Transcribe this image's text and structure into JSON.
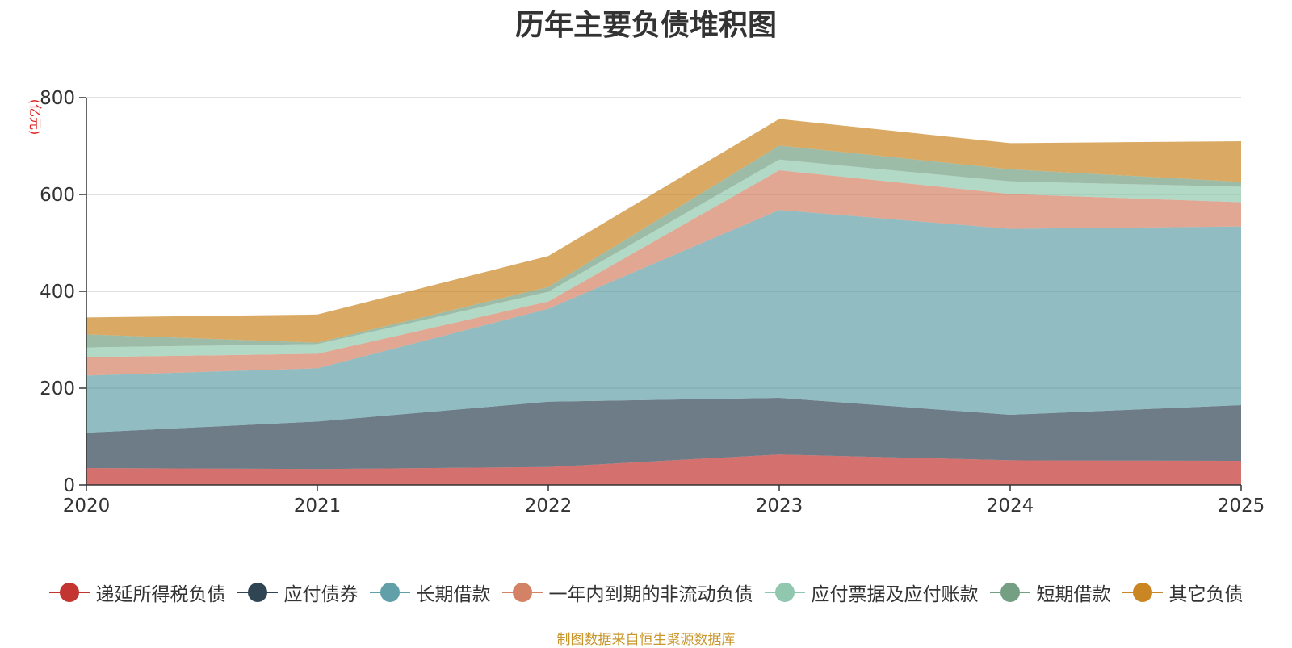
{
  "chart_data": {
    "type": "area",
    "stacked": true,
    "title": "历年主要负债堆积图",
    "ylabel": "(亿元)",
    "xlabel": "",
    "categories": [
      "2020",
      "2021",
      "2022",
      "2023",
      "2024",
      "2025"
    ],
    "ylim": [
      0,
      800
    ],
    "yticks": [
      0,
      200,
      400,
      600,
      800
    ],
    "grid": true,
    "legend_position": "bottom",
    "series": [
      {
        "name": "递延所得税负债",
        "color": "#c23531",
        "values": [
          35,
          33,
          37,
          63,
          51,
          50
        ]
      },
      {
        "name": "应付债券",
        "color": "#2f4554",
        "values": [
          73,
          98,
          135,
          117,
          94,
          115
        ]
      },
      {
        "name": "长期借款",
        "color": "#61a0a8",
        "values": [
          118,
          110,
          192,
          388,
          384,
          369
        ]
      },
      {
        "name": "一年内到期的非流动负债",
        "color": "#d48265",
        "values": [
          38,
          30,
          15,
          82,
          72,
          50
        ]
      },
      {
        "name": "应付票据及应付账款",
        "color": "#91c7ae",
        "values": [
          20,
          20,
          20,
          22,
          26,
          32
        ]
      },
      {
        "name": "短期借款",
        "color": "#749f83",
        "values": [
          27,
          3,
          10,
          29,
          25,
          10
        ]
      },
      {
        "name": "其它负债",
        "color": "#ca8622",
        "values": [
          35,
          58,
          64,
          55,
          54,
          84
        ]
      }
    ]
  },
  "source_note": "制图数据来自恒生聚源数据库"
}
